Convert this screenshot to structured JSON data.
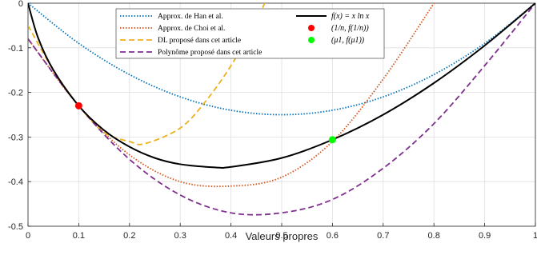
{
  "chart_data": {
    "type": "line",
    "xlabel": "Valeurs propres",
    "ylabel": "",
    "xlim": [
      0,
      1
    ],
    "ylim": [
      -0.5,
      0
    ],
    "xticks": [
      "0",
      "0.1",
      "0.2",
      "0.3",
      "0.4",
      "0.5",
      "0.6",
      "0.7",
      "0.8",
      "0.9",
      "1"
    ],
    "yticks": [
      "0",
      "-0.1",
      "-0.2",
      "-0.3",
      "-0.4",
      "-0.5"
    ],
    "grid": true,
    "legend_position": "top",
    "series": [
      {
        "name": "Approx. de Han et al.",
        "color": "#0072BD",
        "style": "dotted",
        "x": [
          0,
          0.1,
          0.2,
          0.3,
          0.4,
          0.5,
          0.6,
          0.7,
          0.8,
          0.9,
          1.0
        ],
        "y": [
          0,
          -0.09,
          -0.16,
          -0.21,
          -0.24,
          -0.25,
          -0.24,
          -0.21,
          -0.16,
          -0.09,
          0
        ]
      },
      {
        "name": "Approx. de Choi et al.",
        "color": "#D95319",
        "style": "dotted",
        "x": [
          0,
          0.1,
          0.2,
          0.3,
          0.4,
          0.5,
          0.6,
          0.7,
          0.8,
          0.81
        ],
        "y": [
          -0.08,
          -0.23,
          -0.34,
          -0.4,
          -0.41,
          -0.39,
          -0.31,
          -0.17,
          0.0,
          0.02
        ]
      },
      {
        "name": "DL proposé dans cet article",
        "color": "#EDB120",
        "style": "dashed",
        "x": [
          0,
          0.05,
          0.1,
          0.15,
          0.2,
          0.23,
          0.3,
          0.35,
          0.4,
          0.45,
          0.47
        ],
        "y": [
          -0.05,
          -0.15,
          -0.23,
          -0.29,
          -0.31,
          -0.315,
          -0.28,
          -0.22,
          -0.14,
          -0.04,
          0.01
        ]
      },
      {
        "name": "Polynôme proposé dans cet article",
        "color": "#7E2F8E",
        "style": "dashed",
        "x": [
          0,
          0.1,
          0.2,
          0.3,
          0.4,
          0.5,
          0.6,
          0.7,
          0.8,
          0.9,
          1.0
        ],
        "y": [
          -0.08,
          -0.23,
          -0.35,
          -0.43,
          -0.47,
          -0.47,
          -0.44,
          -0.37,
          -0.27,
          -0.14,
          0.0
        ]
      },
      {
        "name": "f(x) = x ln x",
        "color": "#000000",
        "style": "solid",
        "x": [
          0,
          0.02,
          0.05,
          0.1,
          0.15,
          0.2,
          0.25,
          0.3,
          0.368,
          0.4,
          0.5,
          0.6,
          0.7,
          0.8,
          0.9,
          1.0
        ],
        "y": [
          0,
          -0.078,
          -0.15,
          -0.23,
          -0.285,
          -0.322,
          -0.347,
          -0.361,
          -0.368,
          -0.367,
          -0.347,
          -0.306,
          -0.25,
          -0.179,
          -0.095,
          0
        ]
      }
    ],
    "points": [
      {
        "name": "(1/n, f(1/n))",
        "color": "#FF0000",
        "x": 0.1,
        "y": -0.23
      },
      {
        "name": "(μ1, f(μ1))",
        "color": "#00FF00",
        "x": 0.6,
        "y": -0.306
      }
    ]
  },
  "legend": {
    "han": "Approx. de Han et al.",
    "choi": "Approx. de Choi et al.",
    "dl": "DL proposé dans cet article",
    "poly": "Polynôme proposé dans cet article",
    "f_prefix": "f(x) = x ln x",
    "pt1": "(1/n, f(1/n))",
    "pt2": "(μ1, f(μ1))"
  }
}
